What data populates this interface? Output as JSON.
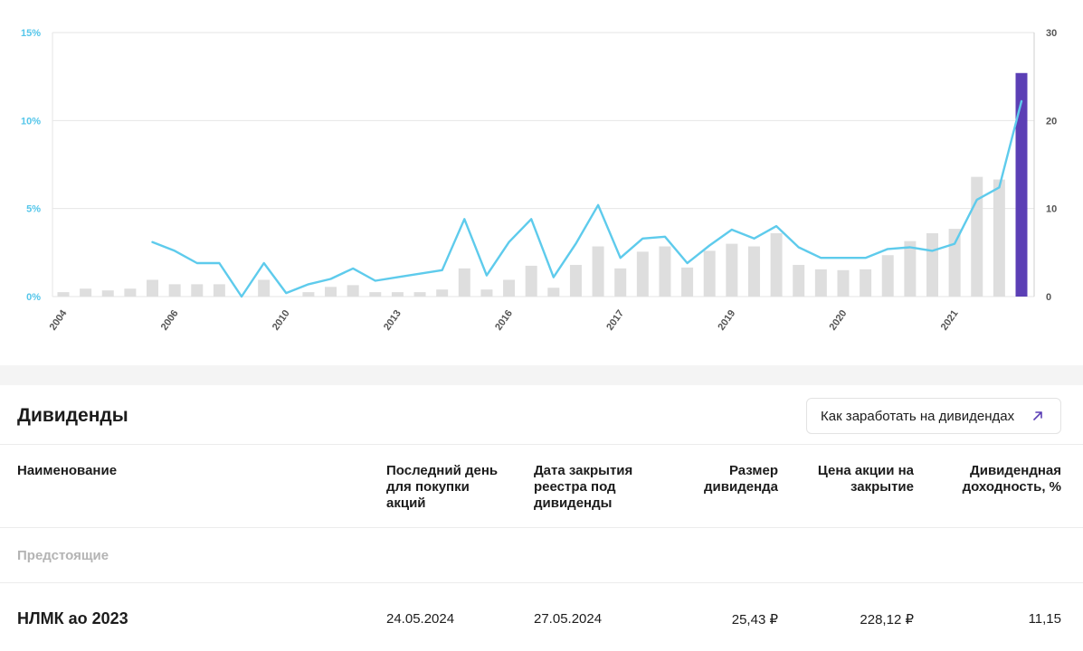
{
  "chart_data": {
    "type": "bar+line",
    "x_tick_labels": [
      "2004",
      "2006",
      "2010",
      "2013",
      "2016",
      "2017",
      "2019",
      "2020",
      "2021"
    ],
    "left_axis": {
      "ticks": [
        "0%",
        "5%",
        "10%",
        "15%"
      ],
      "range": [
        0,
        15
      ],
      "unit": "%"
    },
    "right_axis": {
      "ticks": [
        "0",
        "10",
        "20",
        "30"
      ],
      "range": [
        0,
        30
      ]
    },
    "grid": true,
    "series": [
      {
        "type": "bar",
        "axis": "right",
        "values": [
          0.5,
          0.9,
          0.7,
          0.9,
          1.9,
          1.4,
          1.4,
          1.4,
          0,
          1.9,
          0,
          0.5,
          1.1,
          1.3,
          0.5,
          0.5,
          0.5,
          0.8,
          3.2,
          0.8,
          1.9,
          3.5,
          1.0,
          3.6,
          5.7,
          3.2,
          5.1,
          5.7,
          3.3,
          5.2,
          6.0,
          5.7,
          7.2,
          3.6,
          3.1,
          3.0,
          3.1,
          4.7,
          6.3,
          7.2,
          7.7,
          13.6,
          13.3,
          25.4
        ],
        "highlight_index": 43
      },
      {
        "type": "line",
        "axis": "left",
        "values": [
          null,
          null,
          null,
          null,
          3.1,
          2.6,
          1.9,
          1.9,
          0.0,
          1.9,
          0.2,
          0.7,
          1.0,
          1.6,
          0.9,
          1.1,
          1.3,
          1.5,
          4.4,
          1.2,
          3.1,
          4.4,
          1.1,
          3.0,
          5.2,
          2.2,
          3.3,
          3.4,
          1.9,
          2.9,
          3.8,
          3.3,
          4.0,
          2.8,
          2.2,
          2.2,
          2.2,
          2.7,
          2.8,
          2.6,
          3.0,
          5.5,
          6.2,
          11.1
        ]
      }
    ],
    "colors": {
      "bar": "#dedede",
      "bar_highlight": "#5b3fb5",
      "line": "#5ecbec",
      "axis_left": "#55c6ea",
      "axis_right": "#555555"
    }
  },
  "dividends": {
    "title": "Дивиденды",
    "how_to_button": "Как заработать на дивидендах",
    "headers": {
      "name": "Наименование",
      "last_day": "Последний день для покупки акций",
      "record_date": "Дата закрытия реестра под дивиденды",
      "amount": "Размер дивиденда",
      "close_price": "Цена акции на закрытие",
      "yield": "Дивидендная доходность, %"
    },
    "group_label": "Предстоящие",
    "rows": [
      {
        "name": "НЛМК ао 2023",
        "last_day": "24.05.2024",
        "record_date": "27.05.2024",
        "amount": "25,43 ₽",
        "close_price": "228,12 ₽",
        "yield": "11,15"
      }
    ]
  }
}
